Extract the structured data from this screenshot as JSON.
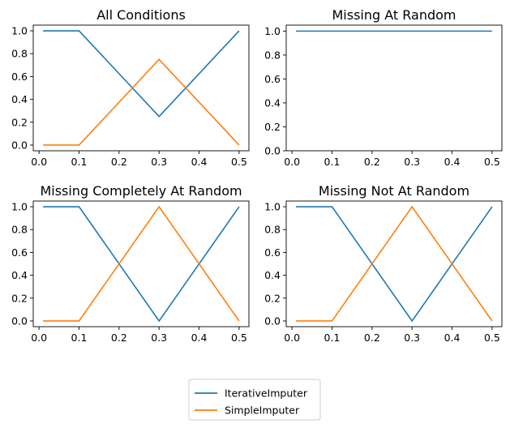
{
  "chart_data": [
    {
      "type": "line",
      "title": "All Conditions",
      "xlabel": "",
      "ylabel": "",
      "x": [
        0.01,
        0.1,
        0.3,
        0.5
      ],
      "series": [
        {
          "name": "IterativeImputer",
          "values": [
            1.0,
            1.0,
            0.25,
            1.0
          ],
          "color": "#1f77b4"
        },
        {
          "name": "SimpleImputer",
          "values": [
            0.0,
            0.0,
            0.75,
            0.0
          ],
          "color": "#ff7f0e"
        }
      ],
      "xlim": [
        -0.0145,
        0.5245
      ],
      "ylim": [
        -0.05,
        1.05
      ],
      "xticks": [
        "0.0",
        "0.1",
        "0.2",
        "0.3",
        "0.4",
        "0.5"
      ],
      "yticks": [
        "0.0",
        "0.2",
        "0.4",
        "0.6",
        "0.8",
        "1.0"
      ],
      "grid": false
    },
    {
      "type": "line",
      "title": "Missing At Random",
      "xlabel": "",
      "ylabel": "",
      "x": [
        0.01,
        0.1,
        0.3,
        0.5
      ],
      "series": [
        {
          "name": "IterativeImputer",
          "values": [
            1.0,
            1.0,
            1.0,
            1.0
          ],
          "color": "#1f77b4"
        }
      ],
      "xlim": [
        -0.0145,
        0.5245
      ],
      "ylim": [
        0.0,
        1.05
      ],
      "xticks": [
        "0.0",
        "0.1",
        "0.2",
        "0.3",
        "0.4",
        "0.5"
      ],
      "yticks": [
        "0.0",
        "0.2",
        "0.4",
        "0.6",
        "0.8",
        "1.0"
      ],
      "grid": false
    },
    {
      "type": "line",
      "title": "Missing Completely At Random",
      "xlabel": "",
      "ylabel": "",
      "x": [
        0.01,
        0.1,
        0.3,
        0.5
      ],
      "series": [
        {
          "name": "IterativeImputer",
          "values": [
            1.0,
            1.0,
            0.0,
            1.0
          ],
          "color": "#1f77b4"
        },
        {
          "name": "SimpleImputer",
          "values": [
            0.0,
            0.0,
            1.0,
            0.0
          ],
          "color": "#ff7f0e"
        }
      ],
      "xlim": [
        -0.0145,
        0.5245
      ],
      "ylim": [
        -0.05,
        1.05
      ],
      "xticks": [
        "0.0",
        "0.1",
        "0.2",
        "0.3",
        "0.4",
        "0.5"
      ],
      "yticks": [
        "0.0",
        "0.2",
        "0.4",
        "0.6",
        "0.8",
        "1.0"
      ],
      "grid": false
    },
    {
      "type": "line",
      "title": "Missing Not At Random",
      "xlabel": "",
      "ylabel": "",
      "x": [
        0.01,
        0.1,
        0.3,
        0.5
      ],
      "series": [
        {
          "name": "IterativeImputer",
          "values": [
            1.0,
            1.0,
            0.0,
            1.0
          ],
          "color": "#1f77b4"
        },
        {
          "name": "SimpleImputer",
          "values": [
            0.0,
            0.0,
            1.0,
            0.0
          ],
          "color": "#ff7f0e"
        }
      ],
      "xlim": [
        -0.0145,
        0.5245
      ],
      "ylim": [
        -0.05,
        1.05
      ],
      "xticks": [
        "0.0",
        "0.1",
        "0.2",
        "0.3",
        "0.4",
        "0.5"
      ],
      "yticks": [
        "0.0",
        "0.2",
        "0.4",
        "0.6",
        "0.8",
        "1.0"
      ],
      "grid": false
    }
  ],
  "legend": {
    "placement": "bottom-center",
    "entries": [
      {
        "label": "IterativeImputer",
        "color": "#1f77b4"
      },
      {
        "label": "SimpleImputer",
        "color": "#ff7f0e"
      }
    ]
  }
}
